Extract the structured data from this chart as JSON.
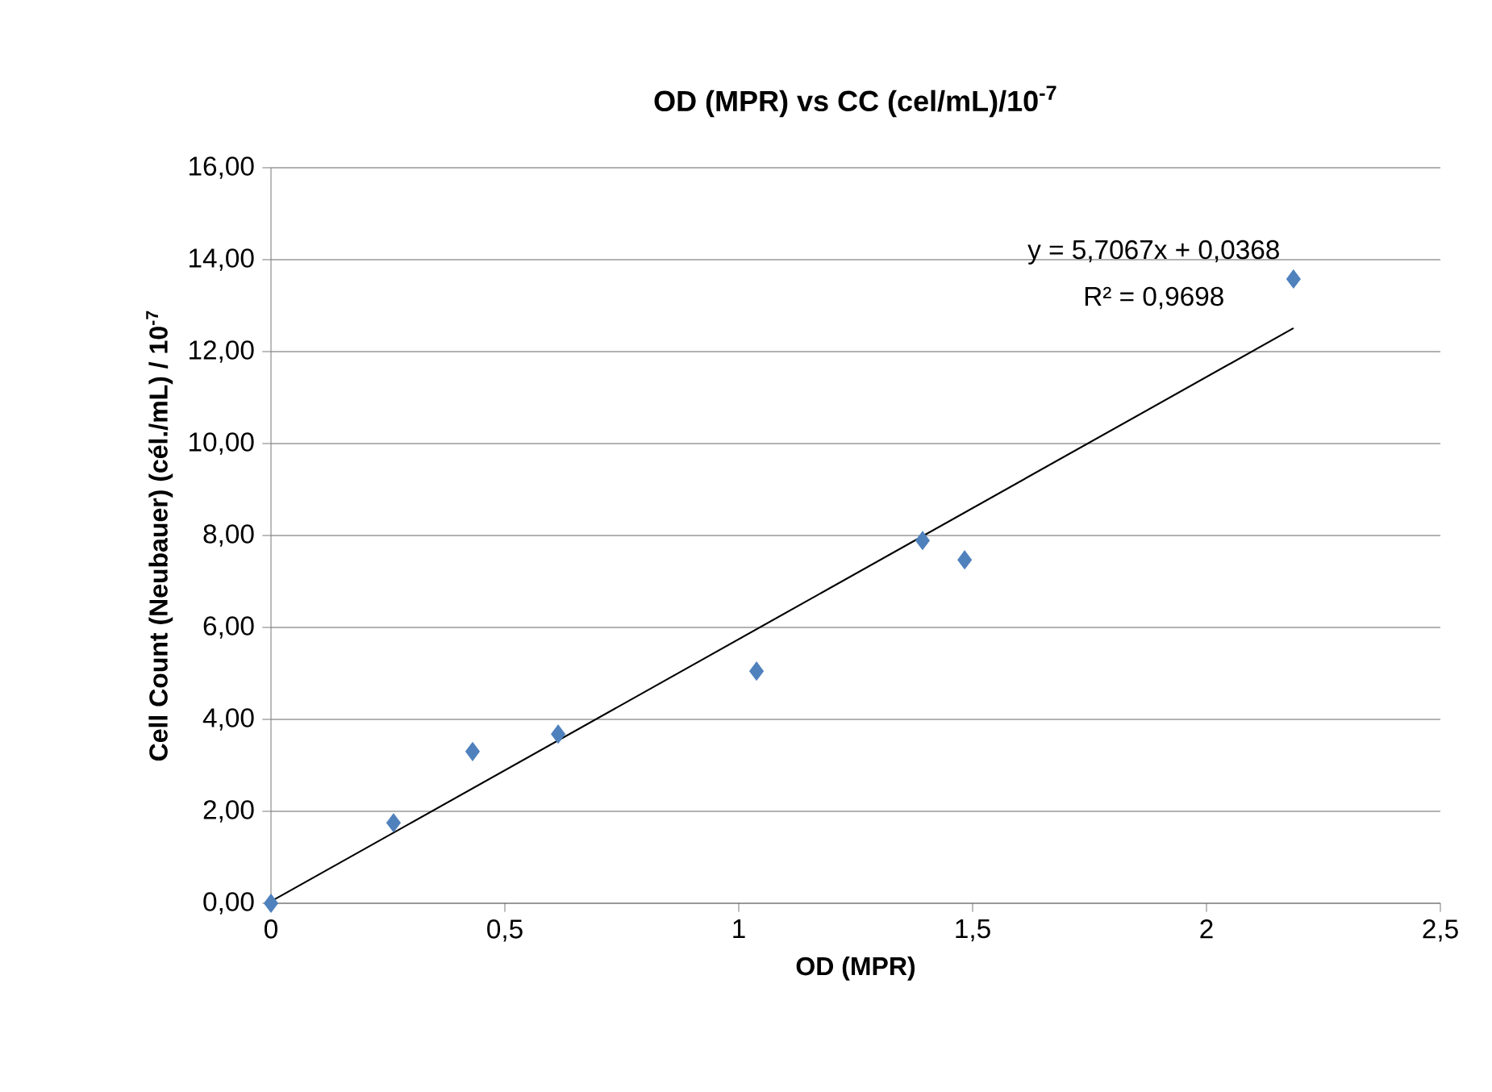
{
  "chart_data": {
    "type": "scatter",
    "title": "OD (MPR) vs CC (cel/mL)/10$^{-7}$",
    "xlabel": "OD (MPR)",
    "ylabel": "Cell Count (Neubauer) (cél./mL) / 10$^{-7}$",
    "series": [
      {
        "color": "#4f81bd",
        "x": [
          0,
          0.262,
          0.431,
          0.614,
          1.038,
          1.393,
          1.483,
          2.186
        ],
        "values": [
          0,
          1.75,
          3.3,
          3.68,
          5.05,
          7.89,
          7.47,
          13.58
        ]
      },
      {
        "type": "line",
        "color": "#000000",
        "marker": "none",
        "x": [
          0,
          2.186
        ],
        "values": [
          0.04,
          12.51
        ]
      }
    ],
    "xlim": [
      0,
      2.5
    ],
    "ylim": [
      0,
      16
    ],
    "xticks": [
      0,
      {
        "value": 0.5,
        "label": "0,5"
      },
      1,
      {
        "value": 1.5,
        "label": "1,5"
      },
      2,
      {
        "value": 2.5,
        "label": "2,5"
      }
    ],
    "yticks": [
      {
        "value": 0,
        "label": "0,00"
      },
      {
        "value": 2,
        "label": "2,00"
      },
      {
        "value": 4,
        "label": "4,00"
      },
      {
        "value": 6,
        "label": "6,00"
      },
      {
        "value": 8,
        "label": "8,00"
      },
      {
        "value": 10,
        "label": "10,00"
      },
      {
        "value": 12,
        "label": "12,00"
      },
      {
        "value": 14,
        "label": "14,00"
      },
      {
        "value": 16,
        "label": "16,00"
      }
    ],
    "annotations": [
      "y = 5,7067x + 0,0368",
      "R² = 0,9698"
    ],
    "grid": "y",
    "marker": "diamond"
  }
}
